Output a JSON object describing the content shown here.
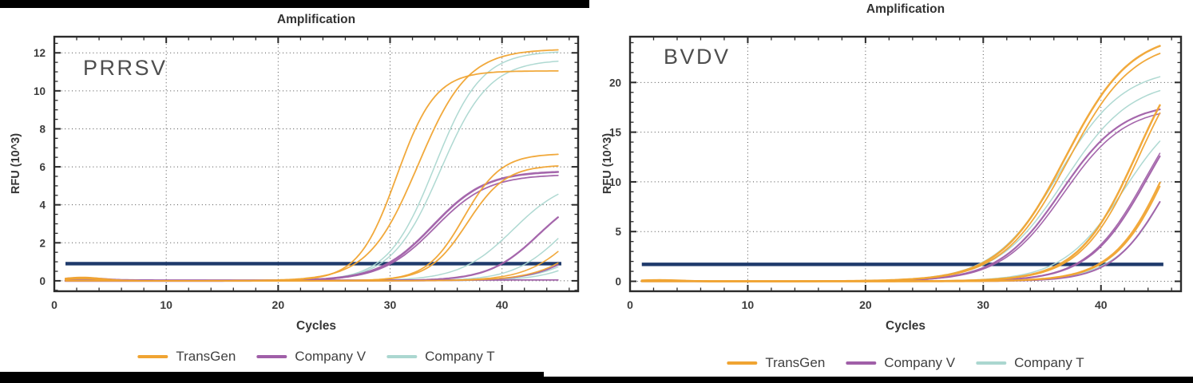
{
  "chart_data": [
    {
      "type": "line",
      "title": "Amplification",
      "panel_label": "PRRSV",
      "xlabel": "Cycles",
      "ylabel": "RFU (10^3)",
      "xlim": [
        0,
        46.8
      ],
      "ylim": [
        -0.55,
        12.85
      ],
      "xticks": [
        0,
        10,
        20,
        30,
        40
      ],
      "yticks": [
        0,
        2,
        4,
        6,
        8,
        10,
        12
      ],
      "x_minor_step": 2,
      "y_minor_step": 0.5,
      "grid": "dotted",
      "x_data_range": [
        1,
        45
      ],
      "threshold": {
        "rfu": 0.9,
        "x_start": 1,
        "x_end": 45.3,
        "color": "#1e3a6b"
      },
      "series": [
        {
          "name": "TransGen",
          "color": "#f0a432",
          "curves": [
            {
              "ct": 26.9,
              "rfu_at_45": 12.2,
              "plateau": 12.2,
              "x0": 32.5,
              "k": 0.45,
              "lw": 1.8,
              "bump": 0.18
            },
            {
              "ct": 26.4,
              "rfu_at_45": 11.0,
              "plateau": 11.05,
              "x0": 30.6,
              "k": 0.58,
              "lw": 1.8,
              "bump": 0.15
            },
            {
              "ct": 33.5,
              "rfu_at_45": 6.7,
              "plateau": 6.7,
              "x0": 36.6,
              "k": 0.6,
              "lw": 1.8,
              "bump": 0.1
            },
            {
              "ct": 33.9,
              "rfu_at_45": 6.0,
              "plateau": 6.1,
              "x0": 36.9,
              "k": 0.58,
              "lw": 1.8
            },
            {
              "ct": 43.4,
              "rfu_at_45": 1.5,
              "plateau": 5.0,
              "x0": 46.8,
              "k": 0.45,
              "lw": 1.6
            },
            {
              "ct": 44.9,
              "rfu_at_45": 0.9,
              "plateau": 5.0,
              "x0": 48.5,
              "k": 0.42,
              "lw": 1.6,
              "bump": 0.12
            }
          ]
        },
        {
          "name": "Company V",
          "color": "#a05fa8",
          "curves": [
            {
              "ct": 29.8,
              "rfu_at_45": 5.7,
              "plateau": 5.78,
              "x0": 33.8,
              "k": 0.42,
              "lw": 2.6
            },
            {
              "ct": 30.1,
              "rfu_at_45": 5.5,
              "plateau": 5.6,
              "x0": 34.0,
              "k": 0.42,
              "lw": 1.8
            },
            {
              "ct": 40.0,
              "rfu_at_45": 3.3,
              "plateau": 4.9,
              "x0": 43.3,
              "k": 0.45,
              "lw": 2.3
            },
            {
              "ct": 45.2,
              "rfu_at_45": 0.8,
              "plateau": 5.0,
              "x0": 48.8,
              "k": 0.42,
              "lw": 1.8,
              "bump": 0.1
            },
            {
              "ct": null,
              "rfu_at_45": 0.1,
              "plateau": 3.0,
              "x0": 60.0,
              "k": 0.5,
              "lw": 1.8,
              "bump": 0.12,
              "base": 0.04
            }
          ]
        },
        {
          "name": "Company T",
          "color": "#abd7d0",
          "curves": [
            {
              "ct": 28.7,
              "rfu_at_45": 12.0,
              "plateau": 12.1,
              "x0": 34.0,
              "k": 0.48,
              "lw": 1.5
            },
            {
              "ct": 29.1,
              "rfu_at_45": 11.6,
              "plateau": 11.65,
              "x0": 34.5,
              "k": 0.46,
              "lw": 1.5
            },
            {
              "ct": 37.2,
              "rfu_at_45": 4.6,
              "plateau": 5.4,
              "x0": 41.0,
              "k": 0.42,
              "lw": 1.5
            },
            {
              "ct": 42.1,
              "rfu_at_45": 2.2,
              "plateau": 5.0,
              "x0": 45.5,
              "k": 0.45,
              "lw": 1.5
            },
            {
              "ct": null,
              "rfu_at_45": 0.7,
              "plateau": 5.0,
              "x0": 49.3,
              "k": 0.42,
              "lw": 1.5,
              "base": 0.03
            },
            {
              "ct": null,
              "rfu_at_45": 0.5,
              "plateau": 5.0,
              "x0": 50.1,
              "k": 0.42,
              "lw": 1.5,
              "bump": 0.06
            }
          ]
        }
      ]
    },
    {
      "type": "line",
      "title": "Amplification",
      "panel_label": "BVDV",
      "xlabel": "Cycles",
      "ylabel": "RFU (10^3)",
      "xlim": [
        0,
        46.8
      ],
      "ylim": [
        -1.0,
        24.6
      ],
      "xticks": [
        0,
        10,
        20,
        30,
        40
      ],
      "yticks": [
        0,
        5,
        10,
        15,
        20
      ],
      "x_minor_step": 2,
      "y_minor_step": 1,
      "grid": "dotted",
      "x_data_range": [
        1,
        45
      ],
      "threshold": {
        "rfu": 1.7,
        "x_start": 1,
        "x_end": 45.3,
        "color": "#1e3a6b"
      },
      "series": [
        {
          "name": "TransGen",
          "color": "#f0a432",
          "curves": [
            {
              "ct": 29.7,
              "rfu_at_45": 23.7,
              "plateau": 25.0,
              "x0": 37.0,
              "k": 0.36,
              "lw": 2.5,
              "bump": 0.12
            },
            {
              "ct": 30.0,
              "rfu_at_45": 22.9,
              "plateau": 24.3,
              "x0": 37.2,
              "k": 0.36,
              "lw": 1.8
            },
            {
              "ct": 36.5,
              "rfu_at_45": 17.7,
              "plateau": 26.0,
              "x0": 43.1,
              "k": 0.4,
              "lw": 2.5
            },
            {
              "ct": 36.7,
              "rfu_at_45": 16.9,
              "plateau": 25.5,
              "x0": 43.3,
              "k": 0.4,
              "lw": 1.8
            },
            {
              "ct": 39.7,
              "rfu_at_45": 9.9,
              "plateau": 25.0,
              "x0": 46.0,
              "k": 0.42,
              "lw": 2.4,
              "bump": 0.08
            },
            {
              "ct": 39.9,
              "rfu_at_45": 9.6,
              "plateau": 25.0,
              "x0": 46.15,
              "k": 0.42,
              "lw": 1.8
            }
          ]
        },
        {
          "name": "Company V",
          "color": "#a05fa8",
          "curves": [
            {
              "ct": 30.7,
              "rfu_at_45": 17.3,
              "plateau": 18.0,
              "x0": 36.6,
              "k": 0.38,
              "lw": 2.2
            },
            {
              "ct": 30.9,
              "rfu_at_45": 16.9,
              "plateau": 17.6,
              "x0": 36.8,
              "k": 0.38,
              "lw": 1.6
            },
            {
              "ct": 37.9,
              "rfu_at_45": 12.6,
              "plateau": 21.0,
              "x0": 44.0,
              "k": 0.4,
              "lw": 2.1
            },
            {
              "ct": 37.8,
              "rfu_at_45": 12.9,
              "plateau": 21.0,
              "x0": 43.85,
              "k": 0.4,
              "lw": 1.5
            },
            {
              "ct": 40.5,
              "rfu_at_45": 8.0,
              "plateau": 18.0,
              "x0": 45.5,
              "k": 0.45,
              "lw": 2.0
            }
          ]
        },
        {
          "name": "Company T",
          "color": "#abd7d0",
          "curves": [
            {
              "ct": 29.6,
              "rfu_at_45": 20.6,
              "plateau": 21.5,
              "x0": 36.4,
              "k": 0.36,
              "lw": 1.5
            },
            {
              "ct": 30.1,
              "rfu_at_45": 19.2,
              "plateau": 20.3,
              "x0": 36.9,
              "k": 0.35,
              "lw": 1.5
            },
            {
              "ct": 36.0,
              "rfu_at_45": 14.1,
              "plateau": 18.6,
              "x0": 42.0,
              "k": 0.38,
              "lw": 1.5
            },
            {
              "ct": 40.3,
              "rfu_at_45": 8.0,
              "plateau": 25.0,
              "x0": 46.9,
              "k": 0.4,
              "lw": 1.5,
              "base": 0.03
            }
          ]
        }
      ]
    }
  ]
}
